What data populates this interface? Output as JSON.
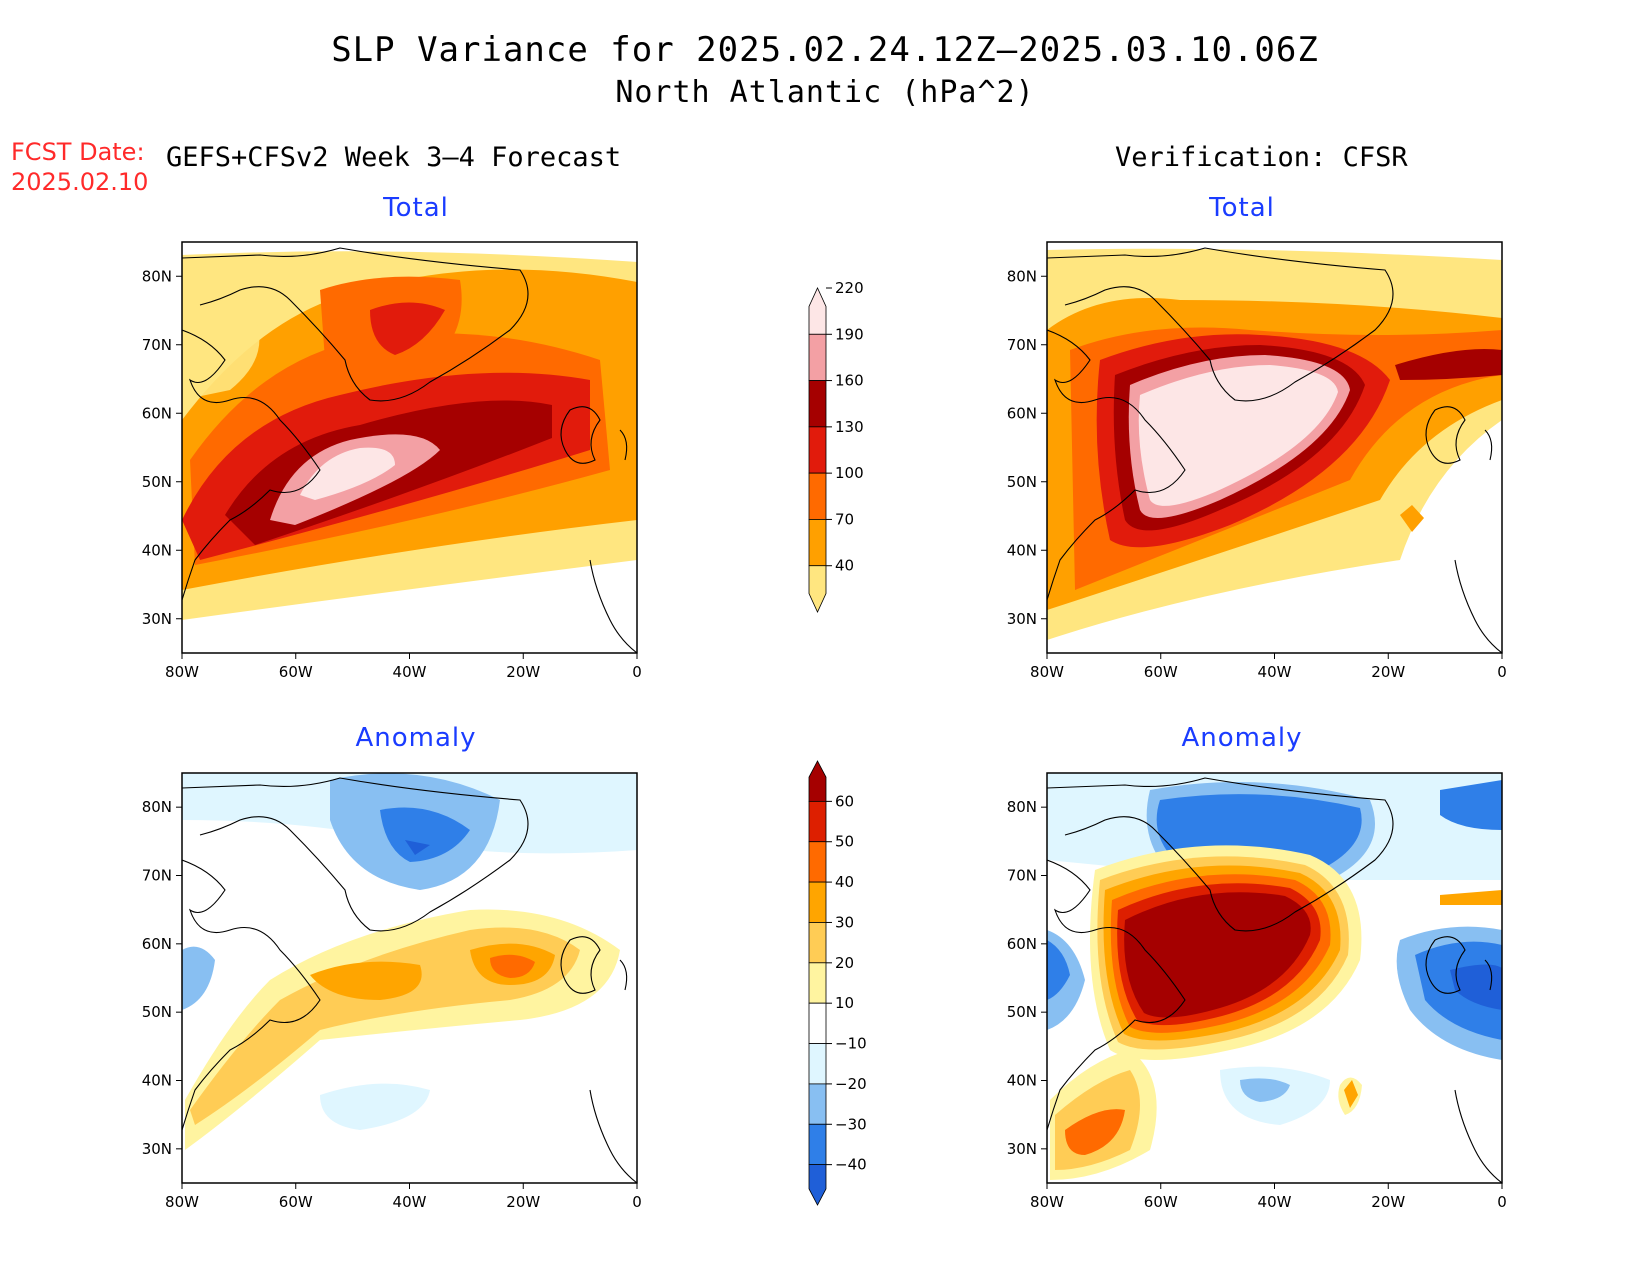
{
  "title": "SLP Variance for 2025.02.24.12Z–2025.03.10.06Z",
  "subtitle": "North Atlantic (hPa^2)",
  "fcst_date_label": "FCST Date:",
  "fcst_date_value": "2025.02.10",
  "left_header": "GEFS+CFSv2 Week 3–4 Forecast",
  "right_header": "Verification: CFSR",
  "panel_titles": {
    "top": "Total",
    "bottom": "Anomaly"
  },
  "map_axes": {
    "lat_labels": [
      "80N",
      "70N",
      "60N",
      "50N",
      "40N",
      "30N"
    ],
    "lat_values": [
      80,
      70,
      60,
      50,
      40,
      30
    ],
    "lon_labels": [
      "80W",
      "60W",
      "40W",
      "20W",
      "0"
    ],
    "lon_values": [
      -80,
      -60,
      -40,
      -20,
      0
    ],
    "lat_range": [
      25,
      85
    ],
    "lon_range": [
      -80,
      0
    ]
  },
  "colorbars": {
    "total": {
      "labels": [
        "40",
        "70",
        "100",
        "130",
        "160",
        "190",
        "220"
      ],
      "colors": [
        "#ffe680",
        "#ffa000",
        "#ff6a00",
        "#e11b0c",
        "#a50000",
        "#f3a0a4",
        "#fde6e6"
      ]
    },
    "anomaly": {
      "labels": [
        "−40",
        "−30",
        "−20",
        "−10",
        "10",
        "20",
        "30",
        "40",
        "50",
        "60"
      ],
      "colors": [
        "#1f5fd8",
        "#2f7fe8",
        "#88bff2",
        "#dff6ff",
        "#ffffff",
        "#fff4a0",
        "#ffcc55",
        "#ffa500",
        "#ff6a00",
        "#dd1f00",
        "#a50000"
      ]
    }
  },
  "chart_data": [
    {
      "type": "heatmap",
      "title": "Total",
      "source": "GEFS+CFSv2 Week 3–4 Forecast",
      "units": "hPa^2",
      "levels": [
        40,
        70,
        100,
        130,
        160,
        190,
        220
      ]
    },
    {
      "type": "heatmap",
      "title": "Total",
      "source": "Verification: CFSR",
      "units": "hPa^2",
      "levels": [
        40,
        70,
        100,
        130,
        160,
        190,
        220
      ]
    },
    {
      "type": "heatmap",
      "title": "Anomaly",
      "source": "GEFS+CFSv2 Week 3–4 Forecast",
      "units": "hPa^2",
      "levels": [
        -40,
        -30,
        -20,
        -10,
        10,
        20,
        30,
        40,
        50,
        60
      ]
    },
    {
      "type": "heatmap",
      "title": "Anomaly",
      "source": "Verification: CFSR",
      "units": "hPa^2",
      "levels": [
        -40,
        -30,
        -20,
        -10,
        10,
        20,
        30,
        40,
        50,
        60
      ]
    }
  ]
}
